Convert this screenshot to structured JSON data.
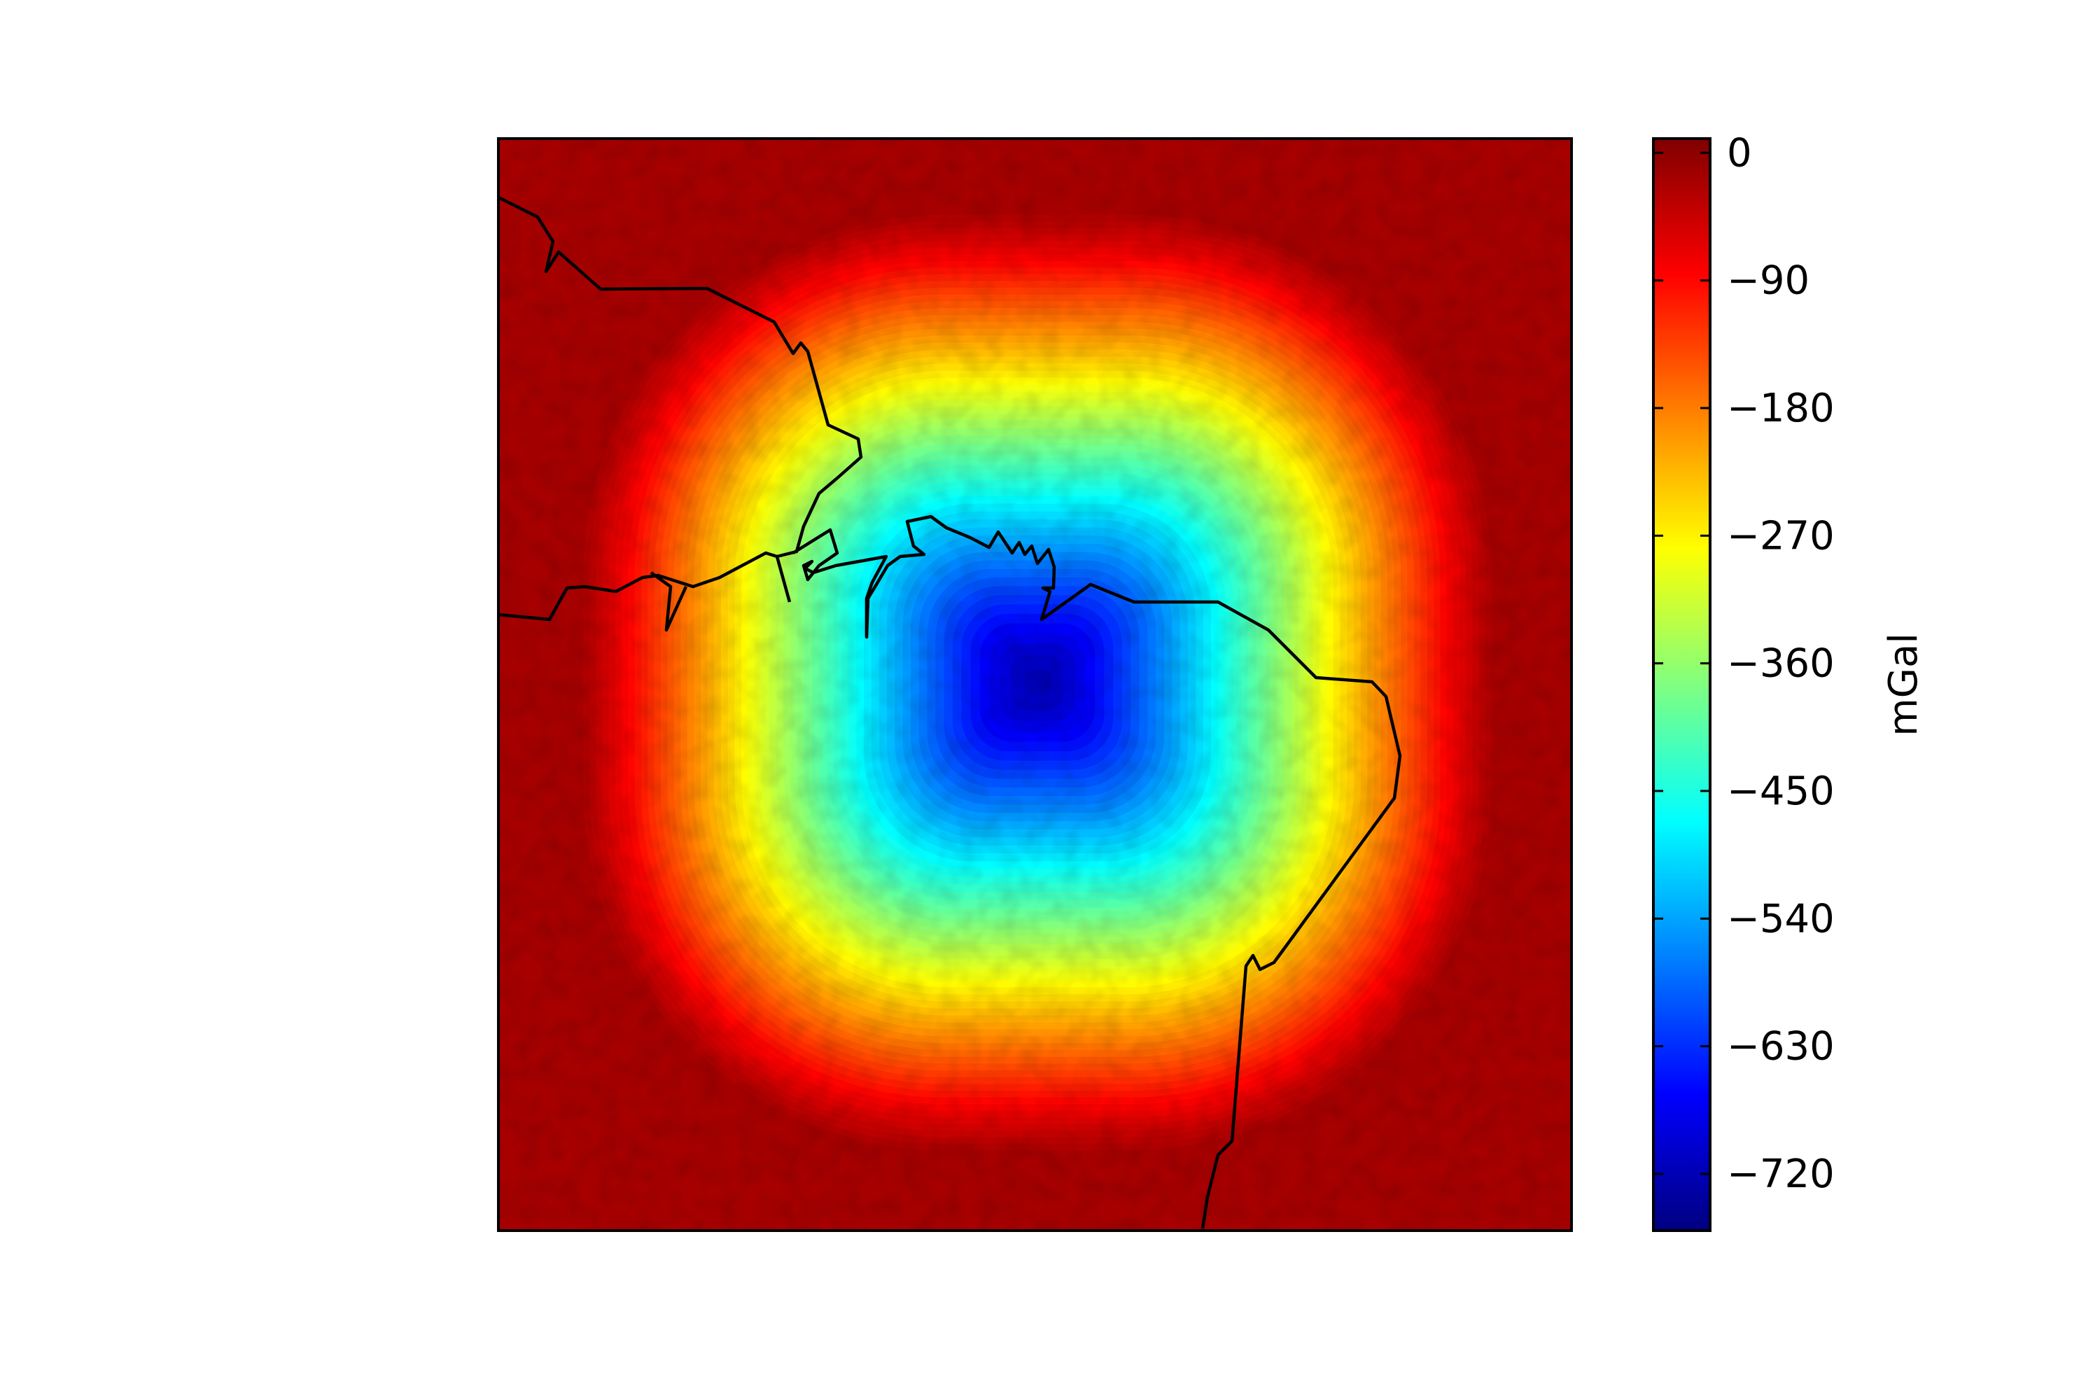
{
  "chart_data": {
    "type": "heatmap",
    "title": "",
    "xlabel": "",
    "ylabel": "",
    "colorbar": {
      "label": "mGal",
      "colormap": "jet",
      "range": [
        -760,
        10
      ],
      "ticks": [
        0,
        -90,
        -180,
        -270,
        -360,
        -450,
        -540,
        -630,
        -720
      ],
      "tick_labels": [
        "0",
        "−90",
        "−180",
        "−270",
        "−360",
        "−450",
        "−540",
        "−630",
        "−720"
      ]
    },
    "anomaly": {
      "minimum_value": -720,
      "background_value": -20,
      "shape": "rounded-square gravity low centred near the middle of the map"
    },
    "coastline": "black continental outline (Caribbean / north-eastern South America)",
    "grid": false,
    "legend": "none",
    "colors": {
      "coastline": "#000000",
      "frame": "#000000",
      "jet_low": "#000080",
      "jet_high": "#800000"
    }
  }
}
